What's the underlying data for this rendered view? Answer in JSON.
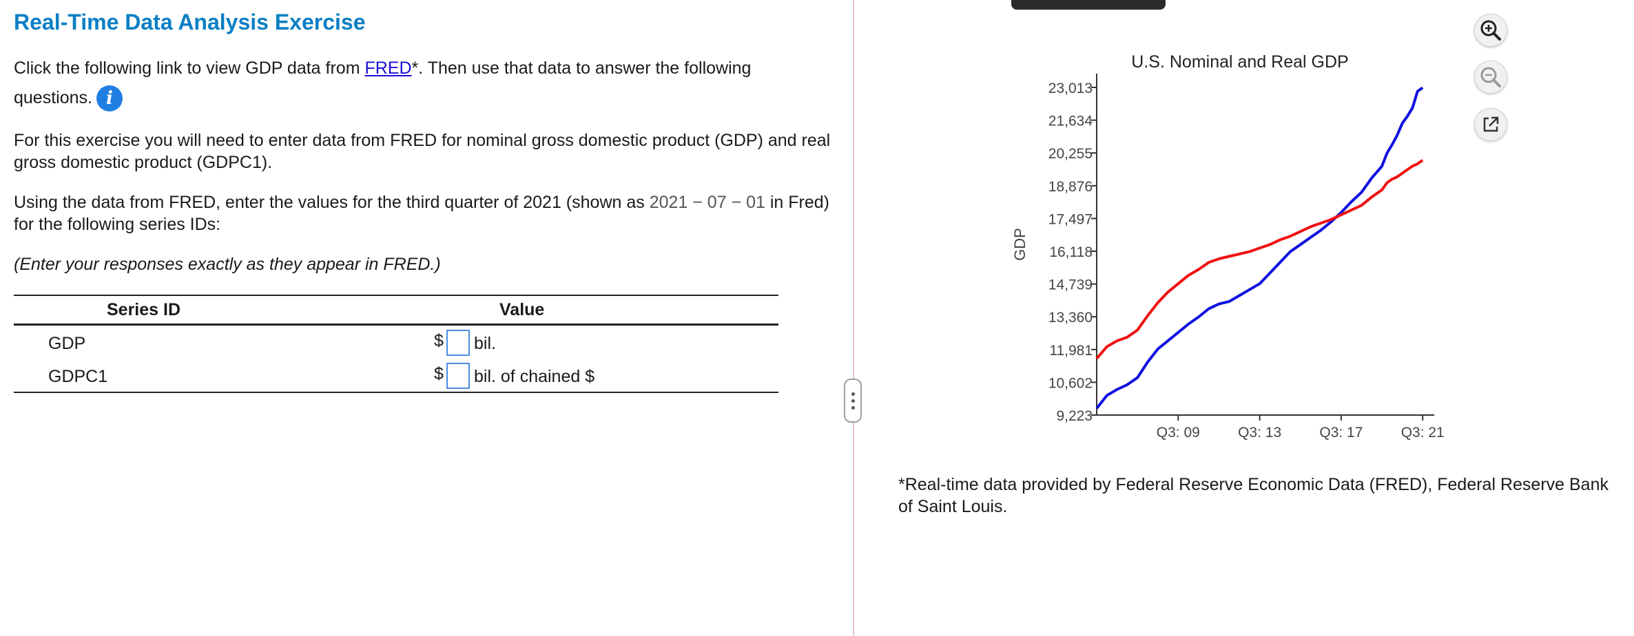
{
  "exercise": {
    "title": "Real-Time Data Analysis Exercise",
    "intro_pre": "Click the following link to view GDP data from ",
    "intro_link": "FRED",
    "intro_post": "*. Then use that data to answer the following questions.",
    "info_icon_glyph": "i",
    "para2": "For this exercise you will need to enter data from FRED for nominal gross domestic product (GDP) and real gross domestic product (GDPC1).",
    "para3_pre": "Using the data from FRED, enter the values for the third quarter of 2021 (shown as ",
    "para3_date": "2021 − 07 − 01",
    "para3_post": " in Fred) for the following series IDs:",
    "para4": "(Enter your responses exactly as they appear in FRED.)"
  },
  "table": {
    "headers": [
      "Series ID",
      "Value"
    ],
    "rows": [
      {
        "series_id": "GDP",
        "prefix": "$",
        "value": "",
        "unit": "bil."
      },
      {
        "series_id": "GDPC1",
        "prefix": "$",
        "value": "",
        "unit": "bil. of chained $"
      }
    ]
  },
  "toolbar": {
    "zoom_in_icon": "zoom-in-icon",
    "zoom_out_icon": "zoom-out-icon",
    "popout_icon": "external-link-icon"
  },
  "footnote": "*Real-time data provided by Federal Reserve Economic Data (FRED), Federal Reserve Bank of Saint Louis.",
  "chart_data": {
    "type": "line",
    "title": "U.S. Nominal and Real GDP",
    "xlabel": "",
    "ylabel": "GDP",
    "ylim": [
      9223,
      23013
    ],
    "xlim": [
      2005.5,
      2022.0
    ],
    "y_ticks": [
      "9,223",
      "10,602",
      "11,981",
      "13,360",
      "14,739",
      "16,118",
      "17,497",
      "18,876",
      "20,255",
      "21,634",
      "23,013"
    ],
    "y_tick_values": [
      9223,
      10602,
      11981,
      13360,
      14739,
      16118,
      17497,
      18876,
      20255,
      21634,
      23013
    ],
    "x_ticks": [
      "Q3: 09",
      "Q3: 13",
      "Q3: 17",
      "Q3: 21"
    ],
    "x_tick_values": [
      2009.5,
      2013.5,
      2017.5,
      2021.5
    ],
    "grid": false,
    "series": [
      {
        "color": "#1010e0",
        "x": [
          2005.5,
          2006.0,
          2006.5,
          2007.0,
          2007.5,
          2008.0,
          2008.5,
          2009.0,
          2009.5,
          2010.0,
          2010.5,
          2011.0,
          2011.5,
          2012.0,
          2012.5,
          2013.0,
          2013.5,
          2014.0,
          2014.5,
          2015.0,
          2015.5,
          2016.0,
          2016.5,
          2017.0,
          2017.5,
          2018.0,
          2018.5,
          2019.0,
          2019.5,
          2019.75,
          2020.0,
          2020.25,
          2020.5,
          2020.75,
          2021.0,
          2021.25,
          2021.5
        ],
        "values": [
          9500,
          10050,
          10300,
          10500,
          10800,
          11450,
          12000,
          12350,
          12700,
          13050,
          13350,
          13700,
          13900,
          14000,
          14250,
          14500,
          14750,
          15200,
          15650,
          16100,
          16400,
          16700,
          17000,
          17350,
          17750,
          18200,
          18600,
          19200,
          19700,
          20250,
          20600,
          21000,
          21500,
          21800,
          22150,
          22850,
          23000
        ]
      },
      {
        "color": "#ee1111",
        "x": [
          2005.5,
          2006.0,
          2006.5,
          2007.0,
          2007.5,
          2008.0,
          2008.5,
          2009.0,
          2009.5,
          2010.0,
          2010.5,
          2011.0,
          2011.5,
          2012.0,
          2012.5,
          2013.0,
          2013.5,
          2014.0,
          2014.5,
          2015.0,
          2015.5,
          2016.0,
          2016.5,
          2017.0,
          2017.5,
          2018.0,
          2018.5,
          2019.0,
          2019.5,
          2019.75,
          2020.0,
          2020.25,
          2020.5,
          2020.75,
          2021.0,
          2021.25,
          2021.5
        ],
        "values": [
          11600,
          12100,
          12350,
          12500,
          12800,
          13400,
          13950,
          14400,
          14750,
          15100,
          15350,
          15650,
          15800,
          15900,
          16000,
          16100,
          16250,
          16400,
          16600,
          16750,
          16950,
          17150,
          17300,
          17450,
          17650,
          17850,
          18050,
          18400,
          18700,
          19000,
          19150,
          19250,
          19400,
          19550,
          19700,
          19800,
          19950
        ]
      }
    ]
  }
}
